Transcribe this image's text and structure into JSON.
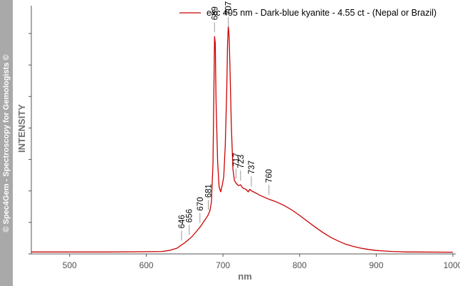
{
  "watermark": "© Spec4Gem - Spectroscopy for Gemologists ©",
  "chart_data": {
    "type": "line",
    "title": "",
    "xlabel": "nm",
    "ylabel": "INTENSITY",
    "xlim": [
      450,
      1000
    ],
    "ylim": [
      0,
      1.0
    ],
    "x_ticks": [
      500,
      600,
      700,
      800,
      900,
      1000
    ],
    "y_tick_count": 8,
    "grid": false,
    "legend_position": "top-right",
    "series": [
      {
        "name": "exc 405 nm - Dark-blue kyanite - 4.55 ct - (Nepal or Brazil)",
        "color": "#cc0000",
        "x": [
          450,
          500,
          550,
          600,
          620,
          630,
          640,
          646,
          650,
          656,
          660,
          665,
          670,
          675,
          680,
          683,
          685,
          687,
          688,
          689,
          690,
          691,
          693,
          695,
          697,
          699,
          701,
          703,
          705,
          706,
          707,
          708,
          709,
          711,
          713,
          715,
          717,
          720,
          723,
          726,
          730,
          733,
          735,
          737,
          740,
          745,
          750,
          760,
          770,
          780,
          790,
          800,
          810,
          820,
          830,
          840,
          850,
          860,
          870,
          880,
          890,
          900,
          910,
          920,
          930,
          940,
          950,
          1000
        ],
        "y": [
          0.002,
          0.002,
          0.002,
          0.003,
          0.004,
          0.008,
          0.017,
          0.03,
          0.038,
          0.053,
          0.064,
          0.082,
          0.1,
          0.122,
          0.145,
          0.165,
          0.2,
          0.35,
          0.6,
          0.855,
          0.83,
          0.6,
          0.36,
          0.26,
          0.24,
          0.265,
          0.3,
          0.42,
          0.65,
          0.82,
          0.895,
          0.86,
          0.75,
          0.5,
          0.33,
          0.285,
          0.275,
          0.265,
          0.268,
          0.255,
          0.25,
          0.24,
          0.25,
          0.245,
          0.24,
          0.232,
          0.224,
          0.211,
          0.2,
          0.186,
          0.168,
          0.147,
          0.124,
          0.101,
          0.08,
          0.061,
          0.046,
          0.033,
          0.024,
          0.017,
          0.012,
          0.008,
          0.006,
          0.004,
          0.003,
          0.002,
          0.002,
          0.001
        ]
      }
    ],
    "annotations": [
      {
        "label": "646",
        "x": 646
      },
      {
        "label": "656",
        "x": 656
      },
      {
        "label": "670",
        "x": 670
      },
      {
        "label": "681",
        "x": 681
      },
      {
        "label": "689",
        "x": 689
      },
      {
        "label": "707",
        "x": 707
      },
      {
        "label": "717",
        "x": 717
      },
      {
        "label": "723",
        "x": 723
      },
      {
        "label": "737",
        "x": 737
      },
      {
        "label": "760",
        "x": 760
      }
    ]
  }
}
